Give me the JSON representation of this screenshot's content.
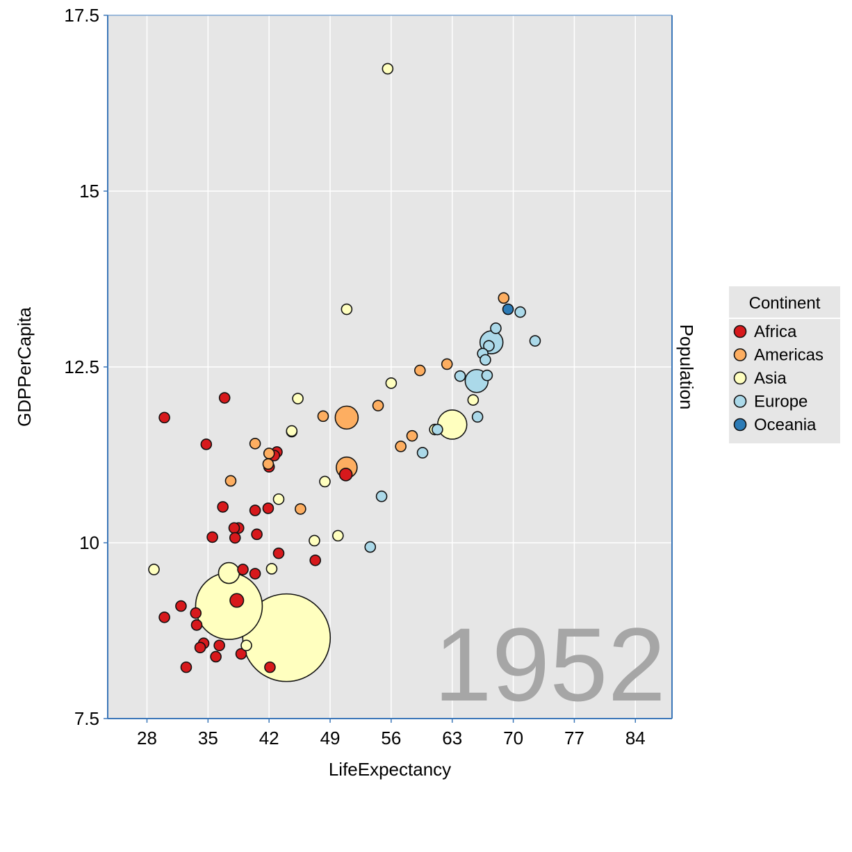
{
  "chart_data": {
    "type": "scatter",
    "xlabel": "LifeExpectancy",
    "ylabel": "GDPPerCapita",
    "size_label": "Population",
    "year": "1952",
    "xlim": [
      23.5,
      88.2
    ],
    "ylim": [
      7.5,
      17.5
    ],
    "xticks": [
      "28",
      "35",
      "42",
      "49",
      "56",
      "63",
      "70",
      "77",
      "84"
    ],
    "yticks": [
      "7.5",
      "10",
      "12.5",
      "15",
      "17.5"
    ],
    "grid": true,
    "legend": {
      "title": "Continent",
      "position": "right",
      "entries": [
        {
          "name": "Africa",
          "color": "#d7191c"
        },
        {
          "name": "Americas",
          "color": "#fdae61"
        },
        {
          "name": "Asia",
          "color": "#ffffbf"
        },
        {
          "name": "Europe",
          "color": "#abd9e9"
        },
        {
          "name": "Oceania",
          "color": "#2c7bb6"
        }
      ]
    },
    "series": [
      {
        "name": "Africa",
        "color": "#d7191c",
        "points": [
          {
            "x": 30.0,
            "y": 11.78,
            "s": 1
          },
          {
            "x": 36.9,
            "y": 12.06,
            "s": 1
          },
          {
            "x": 34.8,
            "y": 11.4,
            "s": 1
          },
          {
            "x": 42.9,
            "y": 11.29,
            "s": 1
          },
          {
            "x": 42.6,
            "y": 11.24,
            "s": 1
          },
          {
            "x": 42.0,
            "y": 11.08,
            "s": 1
          },
          {
            "x": 50.8,
            "y": 10.97,
            "s": 1.2
          },
          {
            "x": 36.7,
            "y": 10.51,
            "s": 1
          },
          {
            "x": 40.4,
            "y": 10.46,
            "s": 1
          },
          {
            "x": 41.9,
            "y": 10.49,
            "s": 1
          },
          {
            "x": 38.5,
            "y": 10.21,
            "s": 1
          },
          {
            "x": 38.0,
            "y": 10.21,
            "s": 1
          },
          {
            "x": 35.5,
            "y": 10.08,
            "s": 1
          },
          {
            "x": 38.1,
            "y": 10.07,
            "s": 1
          },
          {
            "x": 40.6,
            "y": 10.12,
            "s": 1
          },
          {
            "x": 43.1,
            "y": 9.85,
            "s": 1
          },
          {
            "x": 47.3,
            "y": 9.75,
            "s": 1
          },
          {
            "x": 39.0,
            "y": 9.62,
            "s": 1
          },
          {
            "x": 40.4,
            "y": 9.56,
            "s": 1
          },
          {
            "x": 38.3,
            "y": 9.18,
            "s": 1.3
          },
          {
            "x": 31.9,
            "y": 9.1,
            "s": 1
          },
          {
            "x": 33.6,
            "y": 9.0,
            "s": 1
          },
          {
            "x": 30.0,
            "y": 8.94,
            "s": 1
          },
          {
            "x": 33.7,
            "y": 8.83,
            "s": 1
          },
          {
            "x": 34.5,
            "y": 8.57,
            "s": 1
          },
          {
            "x": 34.1,
            "y": 8.51,
            "s": 1
          },
          {
            "x": 36.3,
            "y": 8.54,
            "s": 1
          },
          {
            "x": 35.9,
            "y": 8.38,
            "s": 1
          },
          {
            "x": 38.8,
            "y": 8.42,
            "s": 1
          },
          {
            "x": 32.5,
            "y": 8.23,
            "s": 1
          },
          {
            "x": 42.1,
            "y": 8.23,
            "s": 1
          }
        ]
      },
      {
        "name": "Americas",
        "color": "#fdae61",
        "points": [
          {
            "x": 68.9,
            "y": 13.48,
            "s": 1
          },
          {
            "x": 62.4,
            "y": 12.54,
            "s": 1
          },
          {
            "x": 59.3,
            "y": 12.45,
            "s": 1
          },
          {
            "x": 54.5,
            "y": 11.95,
            "s": 1
          },
          {
            "x": 48.2,
            "y": 11.8,
            "s": 1
          },
          {
            "x": 50.9,
            "y": 11.78,
            "s": 2.2
          },
          {
            "x": 44.6,
            "y": 11.58,
            "s": 1
          },
          {
            "x": 40.4,
            "y": 11.41,
            "s": 1
          },
          {
            "x": 42.0,
            "y": 11.27,
            "s": 1
          },
          {
            "x": 41.9,
            "y": 11.12,
            "s": 1
          },
          {
            "x": 50.9,
            "y": 11.07,
            "s": 2.0
          },
          {
            "x": 58.4,
            "y": 11.52,
            "s": 1
          },
          {
            "x": 57.1,
            "y": 11.37,
            "s": 1
          },
          {
            "x": 37.6,
            "y": 10.88,
            "s": 1
          },
          {
            "x": 45.6,
            "y": 10.48,
            "s": 1
          }
        ]
      },
      {
        "name": "Asia",
        "color": "#ffffbf",
        "points": [
          {
            "x": 55.6,
            "y": 16.74,
            "s": 1
          },
          {
            "x": 50.9,
            "y": 13.32,
            "s": 1
          },
          {
            "x": 56.0,
            "y": 12.27,
            "s": 1
          },
          {
            "x": 45.3,
            "y": 12.05,
            "s": 1
          },
          {
            "x": 44.6,
            "y": 11.59,
            "s": 1
          },
          {
            "x": 65.4,
            "y": 12.03,
            "s": 1
          },
          {
            "x": 63.0,
            "y": 11.68,
            "s": 2.8
          },
          {
            "x": 61.0,
            "y": 11.61,
            "s": 1
          },
          {
            "x": 48.4,
            "y": 10.87,
            "s": 1
          },
          {
            "x": 43.1,
            "y": 10.62,
            "s": 1
          },
          {
            "x": 47.2,
            "y": 10.03,
            "s": 1
          },
          {
            "x": 49.9,
            "y": 10.1,
            "s": 1
          },
          {
            "x": 28.8,
            "y": 9.62,
            "s": 1
          },
          {
            "x": 42.3,
            "y": 9.63,
            "s": 1
          },
          {
            "x": 37.4,
            "y": 9.57,
            "s": 2.0
          },
          {
            "x": 37.4,
            "y": 9.1,
            "s": 6.4
          },
          {
            "x": 44.0,
            "y": 8.65,
            "s": 8.4
          },
          {
            "x": 39.4,
            "y": 8.54,
            "s": 1
          }
        ]
      },
      {
        "name": "Europe",
        "color": "#abd9e9",
        "points": [
          {
            "x": 70.8,
            "y": 13.28,
            "s": 1
          },
          {
            "x": 72.5,
            "y": 12.87,
            "s": 1
          },
          {
            "x": 68.0,
            "y": 13.05,
            "s": 1
          },
          {
            "x": 67.5,
            "y": 12.85,
            "s": 2.2
          },
          {
            "x": 67.2,
            "y": 12.8,
            "s": 1
          },
          {
            "x": 66.5,
            "y": 12.69,
            "s": 1
          },
          {
            "x": 66.8,
            "y": 12.6,
            "s": 1
          },
          {
            "x": 67.0,
            "y": 12.38,
            "s": 1
          },
          {
            "x": 63.9,
            "y": 12.37,
            "s": 1
          },
          {
            "x": 65.8,
            "y": 12.3,
            "s": 2.2
          },
          {
            "x": 65.9,
            "y": 11.79,
            "s": 1
          },
          {
            "x": 61.3,
            "y": 11.61,
            "s": 1
          },
          {
            "x": 59.6,
            "y": 11.28,
            "s": 1
          },
          {
            "x": 54.9,
            "y": 10.66,
            "s": 1
          },
          {
            "x": 53.6,
            "y": 9.94,
            "s": 1
          }
        ]
      },
      {
        "name": "Oceania",
        "color": "#2c7bb6",
        "points": [
          {
            "x": 69.4,
            "y": 13.32,
            "s": 1
          }
        ]
      }
    ]
  }
}
